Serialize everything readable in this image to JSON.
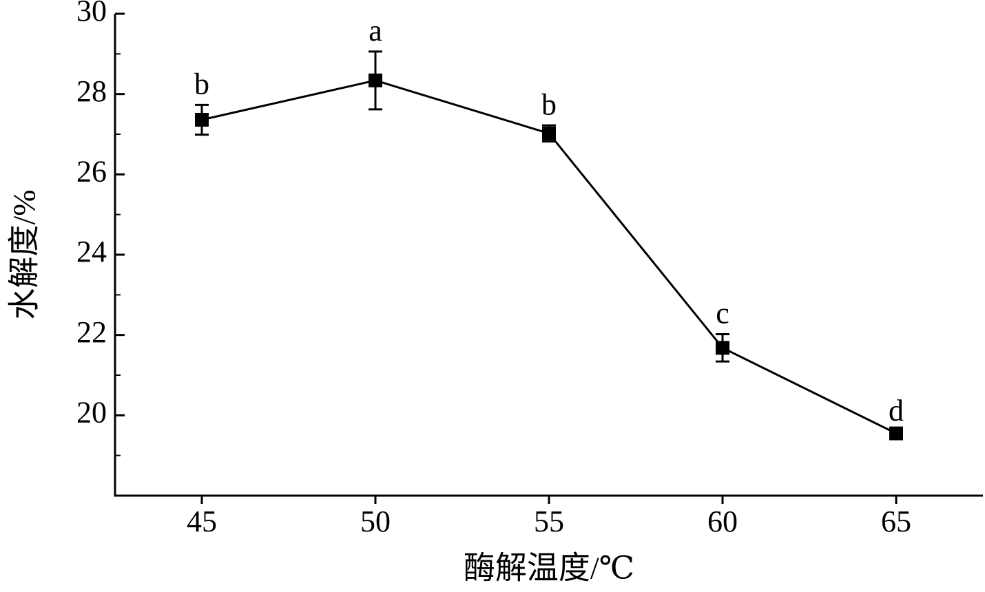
{
  "chart_data": {
    "type": "line",
    "x_label": "酶解温度/℃",
    "y_label": "水解度/%",
    "x": [
      45,
      50,
      55,
      60,
      65
    ],
    "series": [
      {
        "color": "#000000",
        "values": [
          27.36,
          28.34,
          27.02,
          21.68,
          19.55
        ],
        "errors": [
          0.37,
          0.72,
          0.2,
          0.34,
          0.05
        ],
        "annotations": [
          "b",
          "a",
          "b",
          "c",
          "d"
        ]
      }
    ],
    "xlim": [
      42.5,
      67.5
    ],
    "xticks": [
      45,
      50,
      55,
      60,
      65
    ],
    "ylim": [
      18,
      30
    ],
    "yticks": [
      20,
      22,
      24,
      26,
      28,
      30
    ],
    "yminorticks": [
      19,
      21,
      23,
      25,
      27,
      29
    ]
  }
}
